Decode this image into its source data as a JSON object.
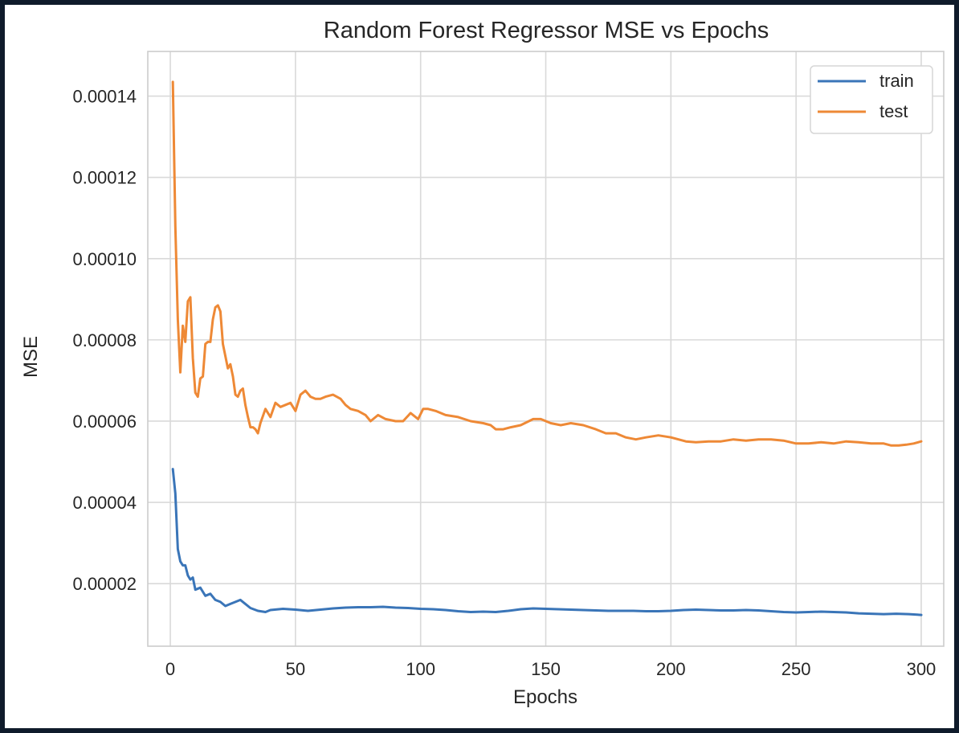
{
  "chart_data": {
    "type": "line",
    "title": "Random Forest Regressor MSE vs Epochs",
    "xlabel": "Epochs",
    "ylabel": "MSE",
    "xlim": [
      -9,
      309
    ],
    "ylim": [
      4.6e-06,
      0.000151
    ],
    "grid": true,
    "legend_position": "top-right",
    "x_ticks": [
      0,
      50,
      100,
      150,
      200,
      250,
      300
    ],
    "x_tick_labels": [
      "0",
      "50",
      "100",
      "150",
      "200",
      "250",
      "300"
    ],
    "y_ticks": [
      2e-05,
      4e-05,
      6e-05,
      8e-05,
      0.0001,
      0.00012,
      0.00014
    ],
    "y_tick_labels": [
      "0.00002",
      "0.00004",
      "0.00006",
      "0.00008",
      "0.00010",
      "0.00012",
      "0.00014"
    ],
    "series": [
      {
        "name": "train",
        "color": "#3a75b8",
        "points": [
          [
            1,
            4.82e-05
          ],
          [
            2,
            4.22e-05
          ],
          [
            3,
            2.85e-05
          ],
          [
            4,
            2.55e-05
          ],
          [
            5,
            2.45e-05
          ],
          [
            6,
            2.45e-05
          ],
          [
            7,
            2.2e-05
          ],
          [
            8,
            2.1e-05
          ],
          [
            9,
            2.15e-05
          ],
          [
            10,
            1.85e-05
          ],
          [
            12,
            1.9e-05
          ],
          [
            14,
            1.7e-05
          ],
          [
            16,
            1.75e-05
          ],
          [
            18,
            1.6e-05
          ],
          [
            20,
            1.55e-05
          ],
          [
            22,
            1.45e-05
          ],
          [
            24,
            1.5e-05
          ],
          [
            26,
            1.55e-05
          ],
          [
            28,
            1.6e-05
          ],
          [
            30,
            1.5e-05
          ],
          [
            32,
            1.4e-05
          ],
          [
            35,
            1.33e-05
          ],
          [
            38,
            1.3e-05
          ],
          [
            40,
            1.35e-05
          ],
          [
            45,
            1.38e-05
          ],
          [
            50,
            1.36e-05
          ],
          [
            55,
            1.33e-05
          ],
          [
            60,
            1.36e-05
          ],
          [
            65,
            1.39e-05
          ],
          [
            70,
            1.41e-05
          ],
          [
            75,
            1.42e-05
          ],
          [
            80,
            1.42e-05
          ],
          [
            85,
            1.43e-05
          ],
          [
            90,
            1.41e-05
          ],
          [
            95,
            1.4e-05
          ],
          [
            100,
            1.38e-05
          ],
          [
            105,
            1.37e-05
          ],
          [
            110,
            1.35e-05
          ],
          [
            115,
            1.32e-05
          ],
          [
            120,
            1.3e-05
          ],
          [
            125,
            1.31e-05
          ],
          [
            130,
            1.3e-05
          ],
          [
            135,
            1.33e-05
          ],
          [
            140,
            1.37e-05
          ],
          [
            145,
            1.39e-05
          ],
          [
            150,
            1.38e-05
          ],
          [
            155,
            1.37e-05
          ],
          [
            160,
            1.36e-05
          ],
          [
            165,
            1.35e-05
          ],
          [
            170,
            1.34e-05
          ],
          [
            175,
            1.33e-05
          ],
          [
            180,
            1.33e-05
          ],
          [
            185,
            1.33e-05
          ],
          [
            190,
            1.32e-05
          ],
          [
            195,
            1.32e-05
          ],
          [
            200,
            1.33e-05
          ],
          [
            205,
            1.35e-05
          ],
          [
            210,
            1.36e-05
          ],
          [
            215,
            1.35e-05
          ],
          [
            220,
            1.34e-05
          ],
          [
            225,
            1.34e-05
          ],
          [
            230,
            1.35e-05
          ],
          [
            235,
            1.34e-05
          ],
          [
            240,
            1.32e-05
          ],
          [
            245,
            1.3e-05
          ],
          [
            250,
            1.29e-05
          ],
          [
            255,
            1.3e-05
          ],
          [
            260,
            1.31e-05
          ],
          [
            265,
            1.3e-05
          ],
          [
            270,
            1.29e-05
          ],
          [
            275,
            1.27e-05
          ],
          [
            280,
            1.26e-05
          ],
          [
            285,
            1.25e-05
          ],
          [
            290,
            1.26e-05
          ],
          [
            295,
            1.25e-05
          ],
          [
            300,
            1.23e-05
          ]
        ]
      },
      {
        "name": "test",
        "color": "#ee8936",
        "points": [
          [
            1,
            0.0001435
          ],
          [
            2,
            0.000108
          ],
          [
            3,
            8.5e-05
          ],
          [
            4,
            7.2e-05
          ],
          [
            5,
            8.35e-05
          ],
          [
            6,
            7.95e-05
          ],
          [
            7,
            8.95e-05
          ],
          [
            8,
            9.05e-05
          ],
          [
            9,
            7.55e-05
          ],
          [
            10,
            6.7e-05
          ],
          [
            11,
            6.6e-05
          ],
          [
            12,
            7.05e-05
          ],
          [
            13,
            7.1e-05
          ],
          [
            14,
            7.9e-05
          ],
          [
            15,
            7.95e-05
          ],
          [
            16,
            7.95e-05
          ],
          [
            17,
            8.5e-05
          ],
          [
            18,
            8.8e-05
          ],
          [
            19,
            8.85e-05
          ],
          [
            20,
            8.7e-05
          ],
          [
            21,
            7.9e-05
          ],
          [
            22,
            7.6e-05
          ],
          [
            23,
            7.3e-05
          ],
          [
            24,
            7.4e-05
          ],
          [
            25,
            7.1e-05
          ],
          [
            26,
            6.65e-05
          ],
          [
            27,
            6.6e-05
          ],
          [
            28,
            6.75e-05
          ],
          [
            29,
            6.8e-05
          ],
          [
            30,
            6.4e-05
          ],
          [
            31,
            6.1e-05
          ],
          [
            32,
            5.85e-05
          ],
          [
            33,
            5.85e-05
          ],
          [
            34,
            5.8e-05
          ],
          [
            35,
            5.7e-05
          ],
          [
            36,
            5.95e-05
          ],
          [
            38,
            6.3e-05
          ],
          [
            40,
            6.1e-05
          ],
          [
            42,
            6.45e-05
          ],
          [
            44,
            6.35e-05
          ],
          [
            46,
            6.4e-05
          ],
          [
            48,
            6.45e-05
          ],
          [
            50,
            6.25e-05
          ],
          [
            52,
            6.65e-05
          ],
          [
            54,
            6.75e-05
          ],
          [
            56,
            6.6e-05
          ],
          [
            58,
            6.55e-05
          ],
          [
            60,
            6.55e-05
          ],
          [
            62,
            6.6e-05
          ],
          [
            65,
            6.65e-05
          ],
          [
            68,
            6.55e-05
          ],
          [
            70,
            6.4e-05
          ],
          [
            72,
            6.3e-05
          ],
          [
            75,
            6.25e-05
          ],
          [
            78,
            6.15e-05
          ],
          [
            80,
            6e-05
          ],
          [
            83,
            6.15e-05
          ],
          [
            86,
            6.05e-05
          ],
          [
            90,
            6e-05
          ],
          [
            93,
            6e-05
          ],
          [
            96,
            6.2e-05
          ],
          [
            99,
            6.05e-05
          ],
          [
            101,
            6.3e-05
          ],
          [
            103,
            6.3e-05
          ],
          [
            106,
            6.25e-05
          ],
          [
            110,
            6.15e-05
          ],
          [
            115,
            6.1e-05
          ],
          [
            120,
            6e-05
          ],
          [
            125,
            5.95e-05
          ],
          [
            128,
            5.9e-05
          ],
          [
            130,
            5.8e-05
          ],
          [
            133,
            5.8e-05
          ],
          [
            136,
            5.85e-05
          ],
          [
            140,
            5.9e-05
          ],
          [
            145,
            6.05e-05
          ],
          [
            148,
            6.05e-05
          ],
          [
            152,
            5.95e-05
          ],
          [
            156,
            5.9e-05
          ],
          [
            160,
            5.95e-05
          ],
          [
            165,
            5.9e-05
          ],
          [
            170,
            5.8e-05
          ],
          [
            174,
            5.7e-05
          ],
          [
            178,
            5.7e-05
          ],
          [
            182,
            5.6e-05
          ],
          [
            186,
            5.55e-05
          ],
          [
            190,
            5.6e-05
          ],
          [
            195,
            5.65e-05
          ],
          [
            200,
            5.6e-05
          ],
          [
            203,
            5.55e-05
          ],
          [
            206,
            5.5e-05
          ],
          [
            210,
            5.48e-05
          ],
          [
            215,
            5.5e-05
          ],
          [
            220,
            5.5e-05
          ],
          [
            225,
            5.55e-05
          ],
          [
            230,
            5.52e-05
          ],
          [
            235,
            5.55e-05
          ],
          [
            240,
            5.55e-05
          ],
          [
            245,
            5.52e-05
          ],
          [
            250,
            5.45e-05
          ],
          [
            255,
            5.45e-05
          ],
          [
            260,
            5.48e-05
          ],
          [
            265,
            5.45e-05
          ],
          [
            270,
            5.5e-05
          ],
          [
            275,
            5.48e-05
          ],
          [
            280,
            5.45e-05
          ],
          [
            285,
            5.45e-05
          ],
          [
            288,
            5.4e-05
          ],
          [
            291,
            5.4e-05
          ],
          [
            294,
            5.42e-05
          ],
          [
            297,
            5.45e-05
          ],
          [
            300,
            5.5e-05
          ]
        ]
      }
    ]
  }
}
